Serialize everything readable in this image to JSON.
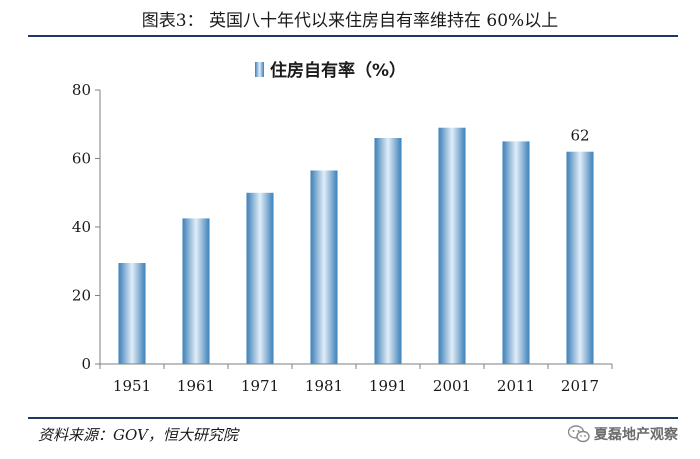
{
  "figure": {
    "title": "图表3：  英国八十年代以来住房自有率维持在 60%以上",
    "source": "资料来源：GOV，恒大研究院",
    "watermark": "夏磊地产观察",
    "watermark_icon": "wechat-icon"
  },
  "chart_data": {
    "type": "bar",
    "legend": {
      "label": "住房自有率（%）",
      "position": "top-center"
    },
    "categories": [
      "1951",
      "1961",
      "1971",
      "1981",
      "1991",
      "2001",
      "2011",
      "2017"
    ],
    "series": [
      {
        "name": "住房自有率（%）",
        "values": [
          29.5,
          42.5,
          50,
          56.5,
          66,
          69,
          65,
          62
        ]
      }
    ],
    "data_labels": [
      {
        "category": "2017",
        "text": "62"
      }
    ],
    "ylim": [
      0,
      80
    ],
    "yticks": [
      0,
      20,
      40,
      60,
      80
    ],
    "grid": false,
    "colors": {
      "bar_edge": "#3a7fb8",
      "bar_center": "#e2eef8",
      "axis": "#7f7f7f",
      "rule": "#1f3864"
    }
  }
}
